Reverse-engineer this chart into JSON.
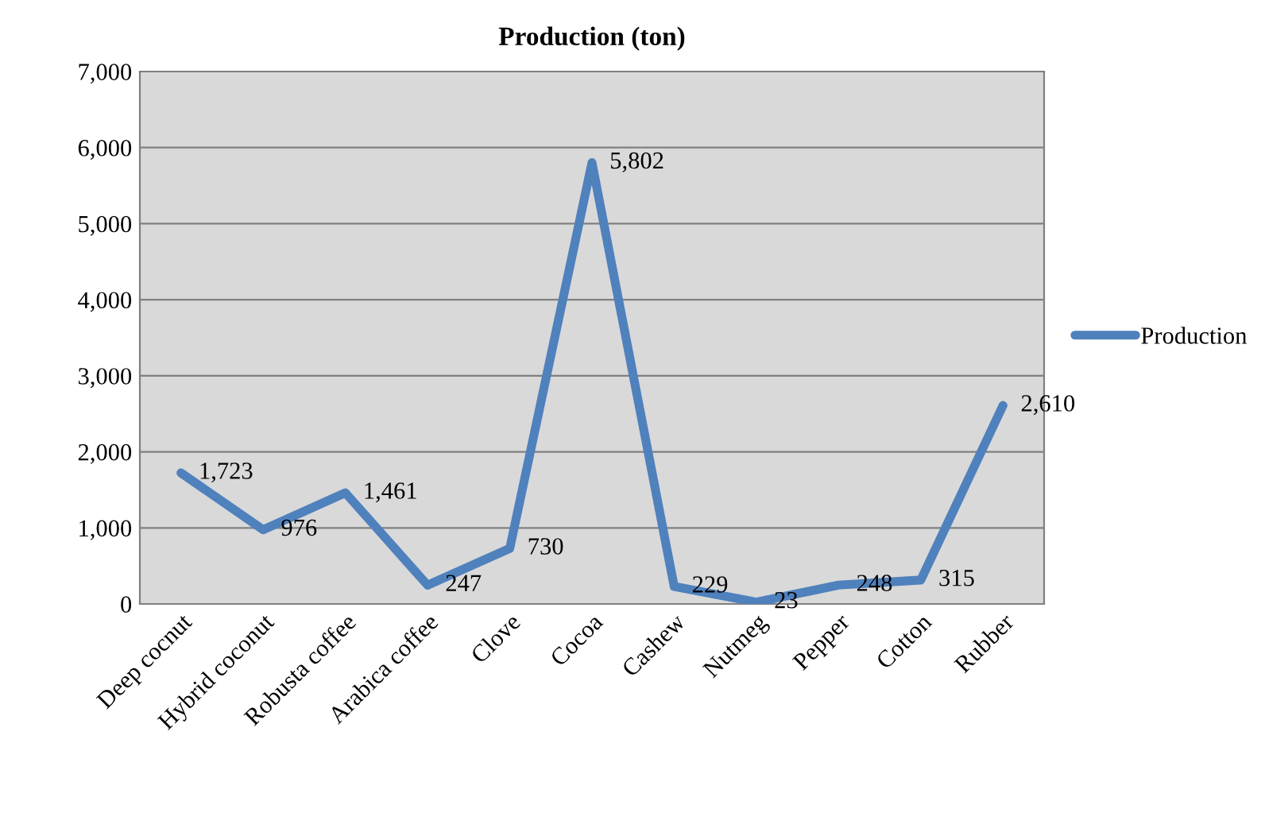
{
  "chart_data": {
    "type": "line",
    "title": "Production (ton)",
    "categories": [
      "Deep cocnut",
      "Hybrid coconut",
      "Robusta coffee",
      "Arabica coffee",
      "Clove",
      "Cocoa",
      "Cashew",
      "Nutmeg",
      "Pepper",
      "Cotton",
      "Rubber"
    ],
    "series": [
      {
        "name": "Production",
        "color": "#4f81bd",
        "values": [
          1723,
          976,
          1461,
          247,
          730,
          5802,
          229,
          23,
          248,
          315,
          2610
        ],
        "value_labels": [
          "1,723",
          "976",
          "1,461",
          "247",
          "730",
          "5,802",
          "229",
          "23",
          "248",
          "315",
          "2,610"
        ]
      }
    ],
    "ylim": [
      0,
      7000
    ],
    "yticks": [
      0,
      {
        "value": 1000,
        "label": "1,000"
      },
      {
        "value": 2000,
        "label": "2,000"
      },
      {
        "value": 3000,
        "label": "3,000"
      },
      {
        "value": 4000,
        "label": "4,000"
      },
      {
        "value": 5000,
        "label": "5,000"
      },
      {
        "value": 6000,
        "label": "6,000"
      },
      {
        "value": 7000,
        "label": "7,000"
      }
    ],
    "grid": "y",
    "legend": "right",
    "marker": "none",
    "line_style": "solid"
  }
}
